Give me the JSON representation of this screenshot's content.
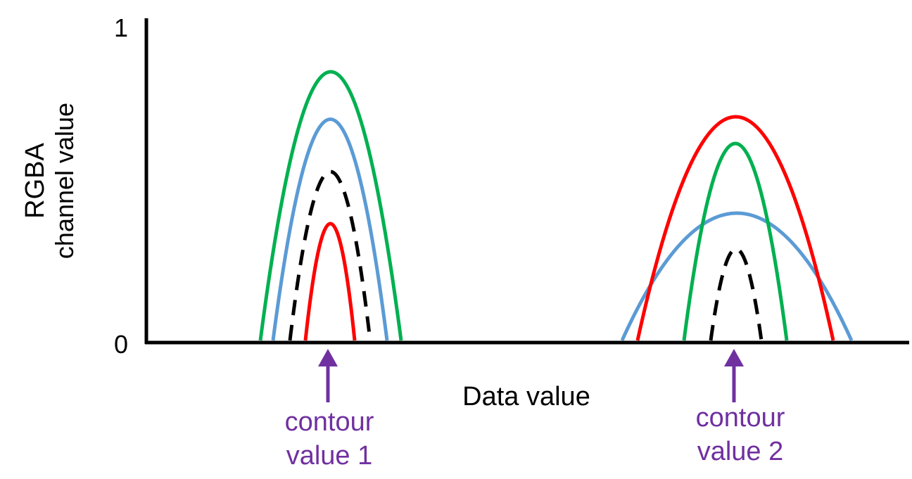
{
  "colors": {
    "axis": "#000000",
    "red": "#ff0000",
    "green": "#00b050",
    "blue": "#5b9bd5",
    "alpha": "#000000",
    "marker": "#7030a0"
  },
  "axes": {
    "y_label_line1": "RGBA",
    "y_label_line2": "channel value",
    "x_label": "Data value",
    "y_max_label": "1",
    "y_min_label": "0"
  },
  "contours": [
    {
      "label_line1": "contour",
      "label_line2": "value 1"
    },
    {
      "label_line1": "contour",
      "label_line2": "value 2"
    }
  ]
}
